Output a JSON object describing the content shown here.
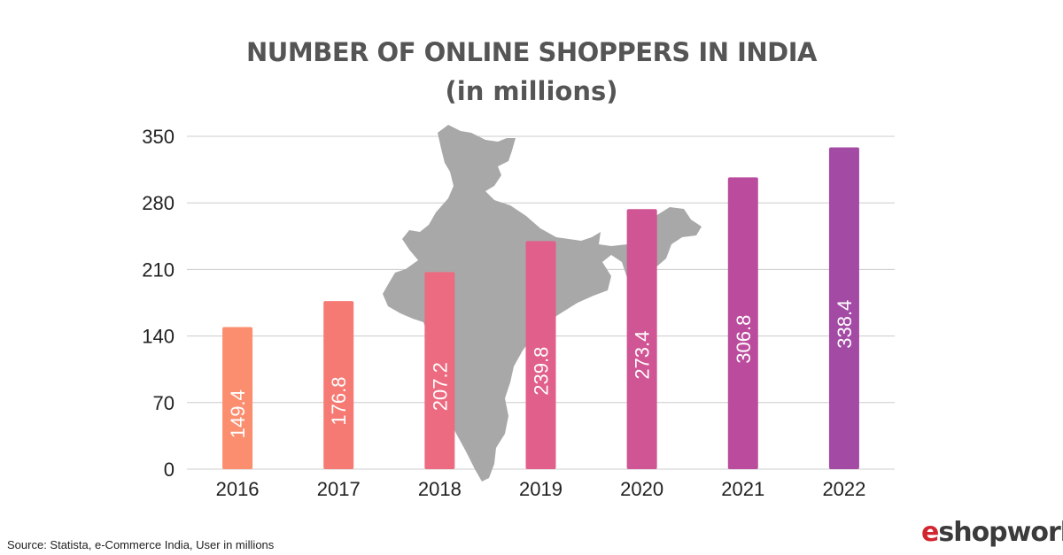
{
  "title": "NUMBER OF ONLINE SHOPPERS IN INDIA",
  "subtitle": "(in millions)",
  "source": "Source: Statista, e-Commerce India, User in millions",
  "logo": {
    "prefix": "e",
    "rest": "shopworld"
  },
  "background_image": "india-map-silhouette",
  "colors": {
    "title": "#555555",
    "grid": "#cccccc",
    "map": "#a8a8a8",
    "logo_accent": "#d1262f",
    "bars": [
      "#fb8e6f",
      "#f67a74",
      "#ed6b80",
      "#e05f8b",
      "#d05594",
      "#bb4c9d",
      "#a34aa5"
    ]
  },
  "chart_data": {
    "type": "bar",
    "categories": [
      "2016",
      "2017",
      "2018",
      "2019",
      "2020",
      "2021",
      "2022"
    ],
    "values": [
      149.4,
      176.8,
      207.2,
      239.8,
      273.4,
      306.8,
      338.4
    ],
    "data_labels": [
      "149.4",
      "176.8",
      "207.2",
      "239.8",
      "273.4",
      "306.8",
      "338.4"
    ],
    "yticks": [
      0,
      70,
      140,
      210,
      280,
      350
    ],
    "ylim": [
      0,
      350
    ],
    "title": "NUMBER OF ONLINE SHOPPERS IN INDIA",
    "subtitle": "(in millions)",
    "xlabel": "",
    "ylabel": "",
    "grid": true,
    "legend": "none",
    "data_label_orientation": "vertical-inside-bar"
  }
}
